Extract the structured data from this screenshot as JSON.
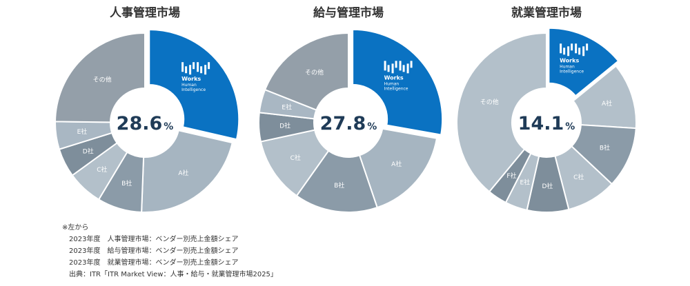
{
  "chart_data": [
    {
      "type": "pie",
      "title": "人事管理市場",
      "center_value": "28.6",
      "center_unit": "%",
      "slices": [
        {
          "label": "Works Human Intelligence",
          "value": 28.6,
          "color": "#0a72c2",
          "logo": true
        },
        {
          "label": "A社",
          "value": 22.0,
          "color": "#a6b5c1"
        },
        {
          "label": "B社",
          "value": 8.0,
          "color": "#8b9ba8"
        },
        {
          "label": "C社",
          "value": 6.4,
          "color": "#b3c0ca"
        },
        {
          "label": "D社",
          "value": 5.2,
          "color": "#7e8e9b"
        },
        {
          "label": "E社",
          "value": 5.0,
          "color": "#a9b7c3"
        },
        {
          "label": "その他",
          "value": 24.8,
          "color": "#949fa9"
        }
      ]
    },
    {
      "type": "pie",
      "title": "給与管理市場",
      "center_value": "27.8",
      "center_unit": "%",
      "slices": [
        {
          "label": "Works Human Intelligence",
          "value": 27.8,
          "color": "#0a72c2",
          "logo": true
        },
        {
          "label": "A社",
          "value": 17.0,
          "color": "#a6b5c1"
        },
        {
          "label": "B社",
          "value": 15.0,
          "color": "#8b9ba8"
        },
        {
          "label": "C社",
          "value": 11.8,
          "color": "#b3c0ca"
        },
        {
          "label": "D社",
          "value": 5.2,
          "color": "#7e8e9b"
        },
        {
          "label": "E社",
          "value": 4.2,
          "color": "#a9b7c3"
        },
        {
          "label": "その他",
          "value": 19.0,
          "color": "#949fa9"
        }
      ]
    },
    {
      "type": "pie",
      "title": "就業管理市場",
      "center_value": "14.1",
      "center_unit": "%",
      "slices": [
        {
          "label": "Works Human Intelligence",
          "value": 14.1,
          "color": "#0a72c2",
          "logo": true
        },
        {
          "label": "A社",
          "value": 11.9,
          "color": "#b3c0ca"
        },
        {
          "label": "B社",
          "value": 11.0,
          "color": "#8b9ba8"
        },
        {
          "label": "C社",
          "value": 9.0,
          "color": "#b3c0ca"
        },
        {
          "label": "D社",
          "value": 7.5,
          "color": "#7e8e9b"
        },
        {
          "label": "E社",
          "value": 4.0,
          "color": "#b3c0ca"
        },
        {
          "label": "F社",
          "value": 3.5,
          "color": "#7e8e9b"
        },
        {
          "label": "その他",
          "value": 39.0,
          "color": "#b3c0ca"
        }
      ]
    }
  ],
  "logo": {
    "line1": "Works",
    "line2": "Human",
    "line3": "Intelligence"
  },
  "footnote": {
    "lead": "※左から",
    "lines": [
      "2023年度　人事管理市場：ベンダー別売上金額シェア",
      "2023年度　給与管理市場：ベンダー別売上金額シェア",
      "2023年度　就業管理市場：ベンダー別売上金額シェア",
      "出典：ITR「ITR Market View：人事・給与・就業管理市場2025」"
    ]
  }
}
